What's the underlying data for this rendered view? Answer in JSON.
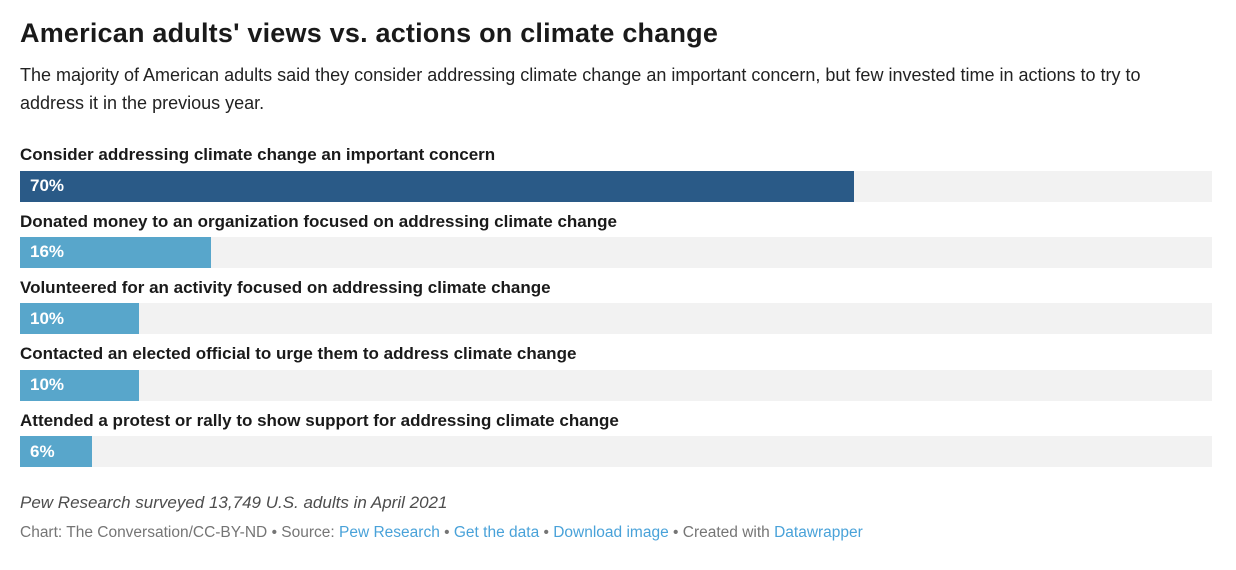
{
  "header": {
    "title": "American adults' views vs. actions on climate change",
    "subtitle": "The majority of American adults said they consider addressing climate change an important concern, but few invested time in actions to try to address it in the previous year."
  },
  "chart_data": {
    "type": "bar",
    "orientation": "horizontal",
    "categories": [
      "Consider addressing climate change an important concern",
      "Donated money to an organization focused on addressing climate change",
      "Volunteered for an activity focused on addressing climate change",
      "Contacted an elected official to urge them to address climate change",
      "Attended a protest or rally to show support for addressing climate change"
    ],
    "values": [
      70,
      16,
      10,
      10,
      6
    ],
    "value_labels": [
      "70%",
      "16%",
      "10%",
      "10%",
      "6%"
    ],
    "xlim": [
      0,
      100
    ],
    "bar_colors": [
      "#2a5a87",
      "#58a6cb",
      "#58a6cb",
      "#58a6cb",
      "#58a6cb"
    ],
    "highlight_color": "#2a5a87",
    "default_color": "#58a6cb",
    "track_color": "#f2f2f2",
    "value_label_position": "inside-left",
    "grid": false,
    "legend": "none"
  },
  "footnote": "Pew Research surveyed 13,749 U.S. adults in April 2021",
  "footer": {
    "chart_credit": "Chart: The Conversation/CC-BY-ND",
    "separator": "•",
    "source_label": "Source:",
    "source_link": "Pew Research",
    "get_data_link": "Get the data",
    "download_link": "Download image",
    "created_label": "Created with",
    "created_link": "Datawrapper",
    "link_color": "#49a2d9",
    "text_color": "#757575"
  }
}
